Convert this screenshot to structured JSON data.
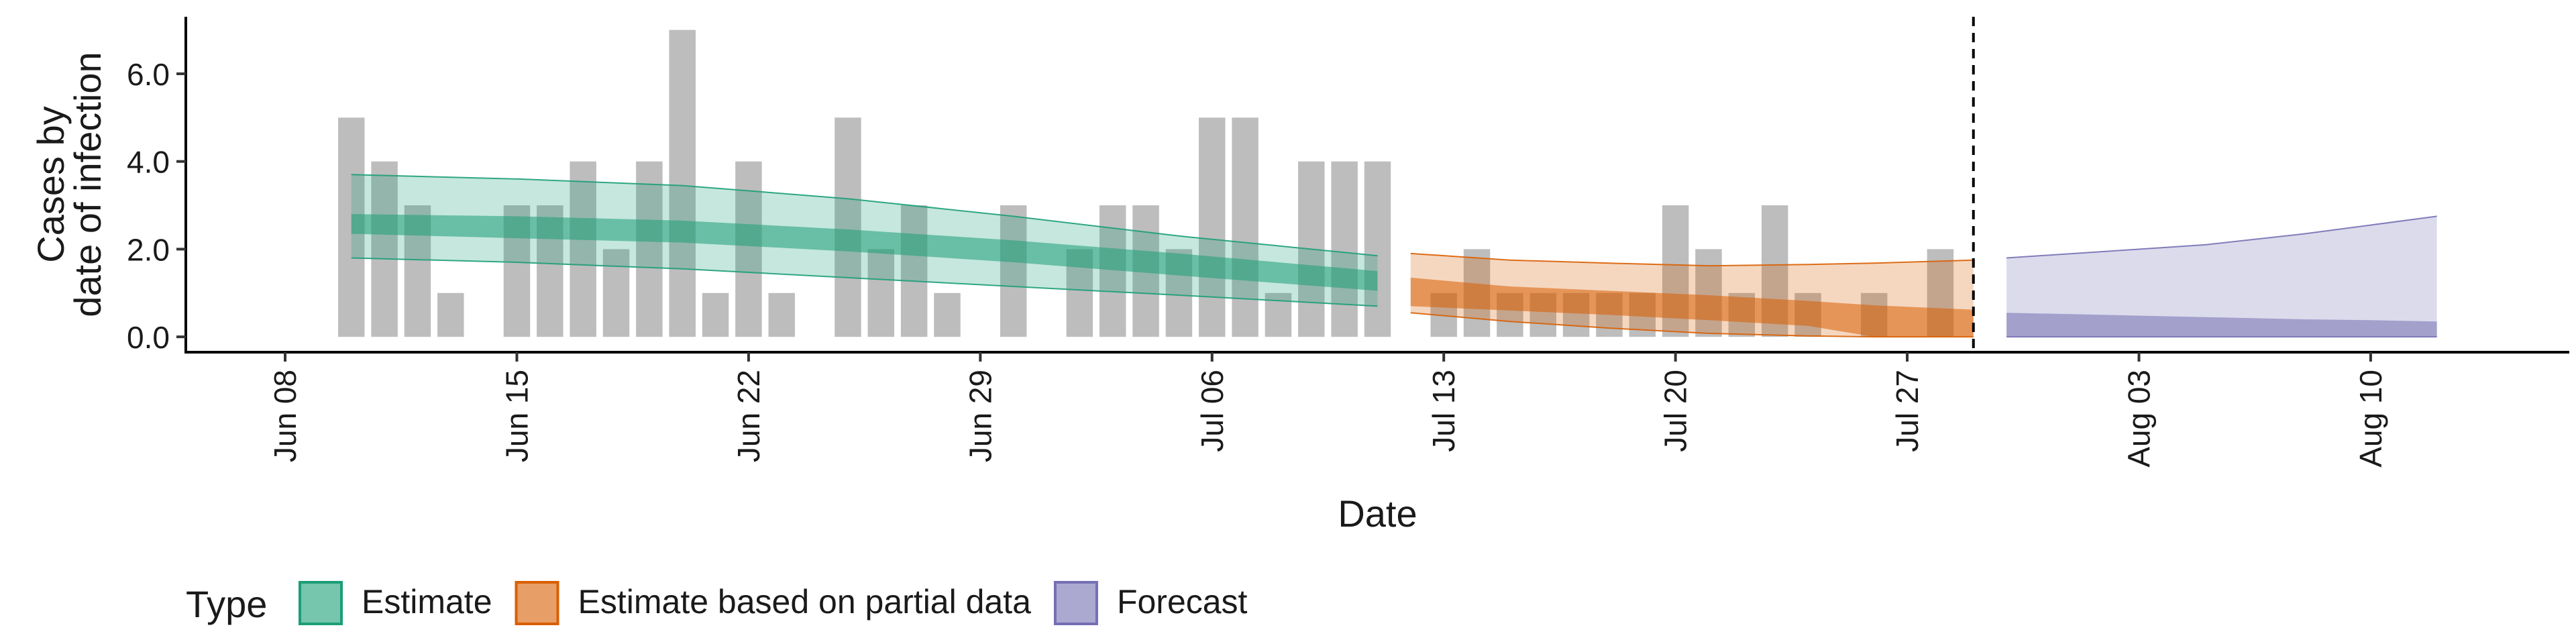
{
  "chart_data": {
    "type": "bar",
    "title": "",
    "xlabel": "Date",
    "ylabel_lines": [
      "Cases by",
      "date of infection"
    ],
    "x_ticks": [
      "Jun 08",
      "Jun 15",
      "Jun 22",
      "Jun 29",
      "Jul 06",
      "Jul 13",
      "Jul 20",
      "Jul 27",
      "Aug 03",
      "Aug 10"
    ],
    "x_tick_dates": [
      "2020-06-08",
      "2020-06-15",
      "2020-06-22",
      "2020-06-29",
      "2020-07-06",
      "2020-07-13",
      "2020-07-20",
      "2020-07-27",
      "2020-08-03",
      "2020-08-10"
    ],
    "xlim": [
      "2020-06-05",
      "2020-08-16"
    ],
    "y_ticks": [
      "0.0",
      "2.0",
      "4.0",
      "6.0"
    ],
    "y_tick_values": [
      0,
      2,
      4,
      6
    ],
    "ylim": [
      -0.35,
      7.3
    ],
    "vline_date": "2020-07-29",
    "grid": false,
    "bars": {
      "color": "#bdbdbd",
      "dates": [
        "2020-06-10",
        "2020-06-11",
        "2020-06-12",
        "2020-06-13",
        "2020-06-15",
        "2020-06-16",
        "2020-06-17",
        "2020-06-18",
        "2020-06-19",
        "2020-06-20",
        "2020-06-21",
        "2020-06-22",
        "2020-06-23",
        "2020-06-25",
        "2020-06-26",
        "2020-06-27",
        "2020-06-28",
        "2020-06-30",
        "2020-07-02",
        "2020-07-03",
        "2020-07-04",
        "2020-07-05",
        "2020-07-06",
        "2020-07-07",
        "2020-07-08",
        "2020-07-09",
        "2020-07-10",
        "2020-07-11",
        "2020-07-13",
        "2020-07-14",
        "2020-07-15",
        "2020-07-16",
        "2020-07-17",
        "2020-07-18",
        "2020-07-19",
        "2020-07-20",
        "2020-07-21",
        "2020-07-22",
        "2020-07-23",
        "2020-07-24",
        "2020-07-26",
        "2020-07-28"
      ],
      "values": [
        5,
        4,
        3,
        1,
        3,
        3,
        4,
        2,
        4,
        7,
        1,
        4,
        1,
        5,
        2,
        3,
        1,
        3,
        2,
        3,
        3,
        2,
        5,
        5,
        1,
        4,
        4,
        4,
        1,
        2,
        1,
        1,
        1,
        1,
        1,
        3,
        2,
        1,
        3,
        1,
        1,
        2
      ]
    },
    "series": [
      {
        "name": "Estimate",
        "color": "#1b9e77",
        "dates": [
          "2020-06-10",
          "2020-06-15",
          "2020-06-20",
          "2020-06-25",
          "2020-06-30",
          "2020-07-05",
          "2020-07-11"
        ],
        "outer_lower": [
          1.8,
          1.7,
          1.55,
          1.35,
          1.15,
          0.95,
          0.7
        ],
        "outer_upper": [
          3.7,
          3.6,
          3.45,
          3.15,
          2.75,
          2.3,
          1.85
        ],
        "inner_lower": [
          2.35,
          2.25,
          2.15,
          1.95,
          1.7,
          1.4,
          1.05
        ],
        "inner_upper": [
          2.8,
          2.75,
          2.65,
          2.45,
          2.2,
          1.9,
          1.5
        ]
      },
      {
        "name": "Estimate based on partial data",
        "color": "#d95f02",
        "dates": [
          "2020-07-12",
          "2020-07-15",
          "2020-07-18",
          "2020-07-21",
          "2020-07-24",
          "2020-07-26",
          "2020-07-29"
        ],
        "outer_lower": [
          0.55,
          0.35,
          0.2,
          0.08,
          0.02,
          0.0,
          0.0
        ],
        "outer_upper": [
          1.9,
          1.75,
          1.68,
          1.62,
          1.65,
          1.68,
          1.75
        ],
        "inner_lower": [
          0.7,
          0.6,
          0.5,
          0.38,
          0.25,
          0.0,
          0.0
        ],
        "inner_upper": [
          1.35,
          1.15,
          1.05,
          0.95,
          0.82,
          0.72,
          0.62
        ]
      },
      {
        "name": "Forecast",
        "color": "#7570b3",
        "dates": [
          "2020-07-30",
          "2020-08-02",
          "2020-08-05",
          "2020-08-08",
          "2020-08-10",
          "2020-08-12"
        ],
        "outer_lower": [
          0,
          0,
          0,
          0,
          0,
          0
        ],
        "outer_upper": [
          1.8,
          1.95,
          2.1,
          2.35,
          2.55,
          2.75
        ],
        "inner_lower": [
          0,
          0,
          0,
          0,
          0,
          0
        ],
        "inner_upper": [
          0.55,
          0.5,
          0.45,
          0.4,
          0.38,
          0.35
        ]
      }
    ],
    "legend": {
      "title": "Type",
      "position": "bottom-left",
      "entries": [
        "Estimate",
        "Estimate based on partial data",
        "Forecast"
      ]
    }
  }
}
